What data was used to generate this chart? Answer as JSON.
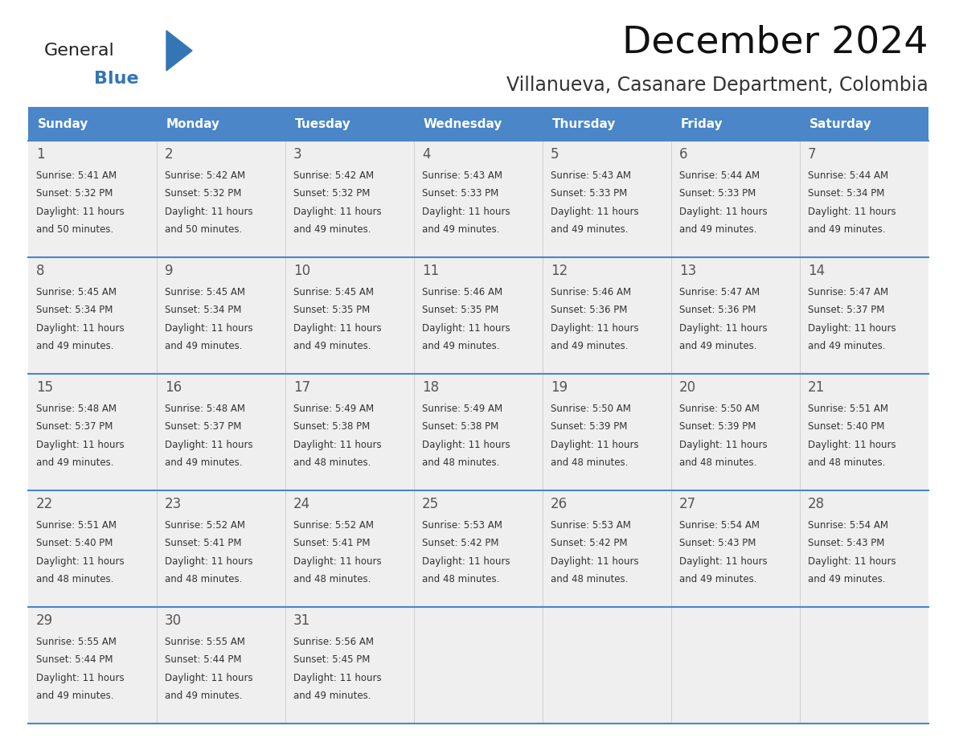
{
  "title": "December 2024",
  "subtitle": "Villanueva, Casanare Department, Colombia",
  "header_color": "#4A86C8",
  "header_text_color": "#FFFFFF",
  "day_names": [
    "Sunday",
    "Monday",
    "Tuesday",
    "Wednesday",
    "Thursday",
    "Friday",
    "Saturday"
  ],
  "background_color": "#FFFFFF",
  "cell_bg_color": "#EFEFEF",
  "border_color": "#4A86C8",
  "text_color": "#333333",
  "day_num_color": "#555555",
  "logo_general_color": "#222222",
  "logo_blue_color": "#3375B5",
  "days": [
    {
      "day": 1,
      "col": 0,
      "row": 0,
      "sunrise": "5:41 AM",
      "sunset": "5:32 PM",
      "daylight": "11 hours and 50 minutes."
    },
    {
      "day": 2,
      "col": 1,
      "row": 0,
      "sunrise": "5:42 AM",
      "sunset": "5:32 PM",
      "daylight": "11 hours and 50 minutes."
    },
    {
      "day": 3,
      "col": 2,
      "row": 0,
      "sunrise": "5:42 AM",
      "sunset": "5:32 PM",
      "daylight": "11 hours and 49 minutes."
    },
    {
      "day": 4,
      "col": 3,
      "row": 0,
      "sunrise": "5:43 AM",
      "sunset": "5:33 PM",
      "daylight": "11 hours and 49 minutes."
    },
    {
      "day": 5,
      "col": 4,
      "row": 0,
      "sunrise": "5:43 AM",
      "sunset": "5:33 PM",
      "daylight": "11 hours and 49 minutes."
    },
    {
      "day": 6,
      "col": 5,
      "row": 0,
      "sunrise": "5:44 AM",
      "sunset": "5:33 PM",
      "daylight": "11 hours and 49 minutes."
    },
    {
      "day": 7,
      "col": 6,
      "row": 0,
      "sunrise": "5:44 AM",
      "sunset": "5:34 PM",
      "daylight": "11 hours and 49 minutes."
    },
    {
      "day": 8,
      "col": 0,
      "row": 1,
      "sunrise": "5:45 AM",
      "sunset": "5:34 PM",
      "daylight": "11 hours and 49 minutes."
    },
    {
      "day": 9,
      "col": 1,
      "row": 1,
      "sunrise": "5:45 AM",
      "sunset": "5:34 PM",
      "daylight": "11 hours and 49 minutes."
    },
    {
      "day": 10,
      "col": 2,
      "row": 1,
      "sunrise": "5:45 AM",
      "sunset": "5:35 PM",
      "daylight": "11 hours and 49 minutes."
    },
    {
      "day": 11,
      "col": 3,
      "row": 1,
      "sunrise": "5:46 AM",
      "sunset": "5:35 PM",
      "daylight": "11 hours and 49 minutes."
    },
    {
      "day": 12,
      "col": 4,
      "row": 1,
      "sunrise": "5:46 AM",
      "sunset": "5:36 PM",
      "daylight": "11 hours and 49 minutes."
    },
    {
      "day": 13,
      "col": 5,
      "row": 1,
      "sunrise": "5:47 AM",
      "sunset": "5:36 PM",
      "daylight": "11 hours and 49 minutes."
    },
    {
      "day": 14,
      "col": 6,
      "row": 1,
      "sunrise": "5:47 AM",
      "sunset": "5:37 PM",
      "daylight": "11 hours and 49 minutes."
    },
    {
      "day": 15,
      "col": 0,
      "row": 2,
      "sunrise": "5:48 AM",
      "sunset": "5:37 PM",
      "daylight": "11 hours and 49 minutes."
    },
    {
      "day": 16,
      "col": 1,
      "row": 2,
      "sunrise": "5:48 AM",
      "sunset": "5:37 PM",
      "daylight": "11 hours and 49 minutes."
    },
    {
      "day": 17,
      "col": 2,
      "row": 2,
      "sunrise": "5:49 AM",
      "sunset": "5:38 PM",
      "daylight": "11 hours and 48 minutes."
    },
    {
      "day": 18,
      "col": 3,
      "row": 2,
      "sunrise": "5:49 AM",
      "sunset": "5:38 PM",
      "daylight": "11 hours and 48 minutes."
    },
    {
      "day": 19,
      "col": 4,
      "row": 2,
      "sunrise": "5:50 AM",
      "sunset": "5:39 PM",
      "daylight": "11 hours and 48 minutes."
    },
    {
      "day": 20,
      "col": 5,
      "row": 2,
      "sunrise": "5:50 AM",
      "sunset": "5:39 PM",
      "daylight": "11 hours and 48 minutes."
    },
    {
      "day": 21,
      "col": 6,
      "row": 2,
      "sunrise": "5:51 AM",
      "sunset": "5:40 PM",
      "daylight": "11 hours and 48 minutes."
    },
    {
      "day": 22,
      "col": 0,
      "row": 3,
      "sunrise": "5:51 AM",
      "sunset": "5:40 PM",
      "daylight": "11 hours and 48 minutes."
    },
    {
      "day": 23,
      "col": 1,
      "row": 3,
      "sunrise": "5:52 AM",
      "sunset": "5:41 PM",
      "daylight": "11 hours and 48 minutes."
    },
    {
      "day": 24,
      "col": 2,
      "row": 3,
      "sunrise": "5:52 AM",
      "sunset": "5:41 PM",
      "daylight": "11 hours and 48 minutes."
    },
    {
      "day": 25,
      "col": 3,
      "row": 3,
      "sunrise": "5:53 AM",
      "sunset": "5:42 PM",
      "daylight": "11 hours and 48 minutes."
    },
    {
      "day": 26,
      "col": 4,
      "row": 3,
      "sunrise": "5:53 AM",
      "sunset": "5:42 PM",
      "daylight": "11 hours and 48 minutes."
    },
    {
      "day": 27,
      "col": 5,
      "row": 3,
      "sunrise": "5:54 AM",
      "sunset": "5:43 PM",
      "daylight": "11 hours and 49 minutes."
    },
    {
      "day": 28,
      "col": 6,
      "row": 3,
      "sunrise": "5:54 AM",
      "sunset": "5:43 PM",
      "daylight": "11 hours and 49 minutes."
    },
    {
      "day": 29,
      "col": 0,
      "row": 4,
      "sunrise": "5:55 AM",
      "sunset": "5:44 PM",
      "daylight": "11 hours and 49 minutes."
    },
    {
      "day": 30,
      "col": 1,
      "row": 4,
      "sunrise": "5:55 AM",
      "sunset": "5:44 PM",
      "daylight": "11 hours and 49 minutes."
    },
    {
      "day": 31,
      "col": 2,
      "row": 4,
      "sunrise": "5:56 AM",
      "sunset": "5:45 PM",
      "daylight": "11 hours and 49 minutes."
    }
  ]
}
